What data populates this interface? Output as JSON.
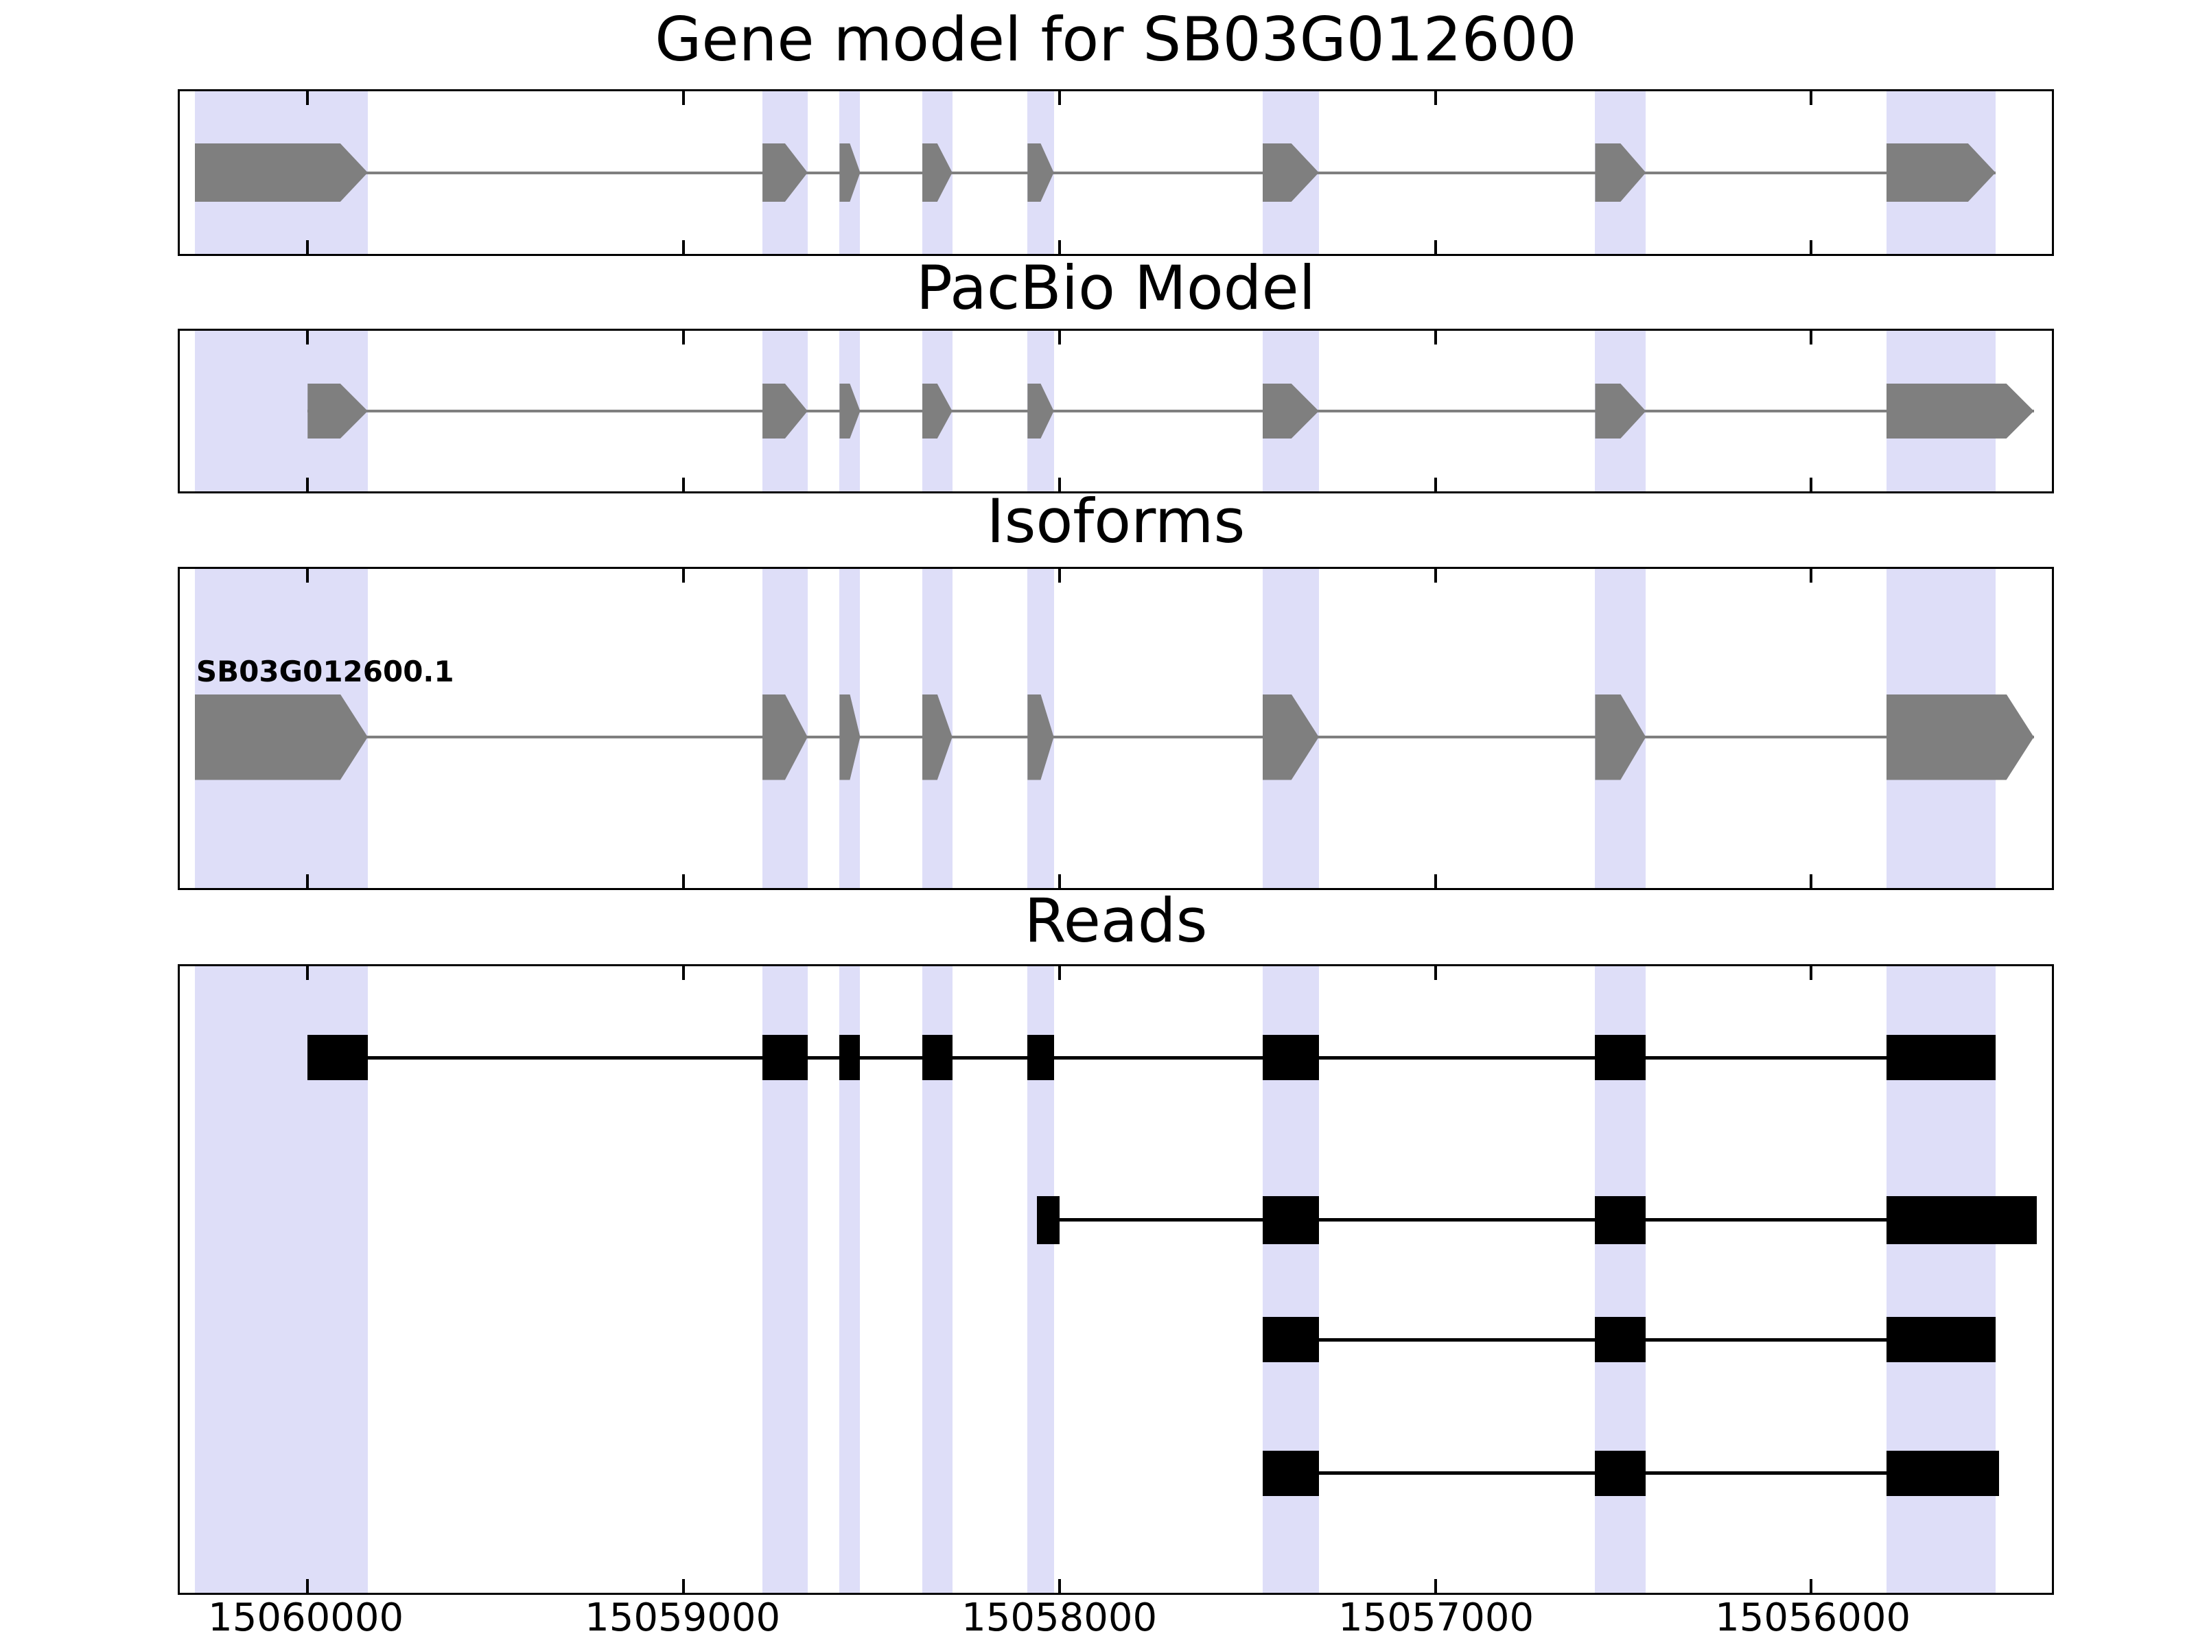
{
  "chart_data": {
    "type": "genome-track-plot",
    "x_axis": {
      "range_left": 15060340,
      "range_right": 15055360,
      "inverted": true,
      "tick_values": [
        15060000,
        15059000,
        15058000,
        15057000,
        15056000
      ],
      "tick_labels": [
        "15060000",
        "15059000",
        "15058000",
        "15057000",
        "15056000"
      ]
    },
    "highlight_regions": [
      [
        15060300,
        15059840
      ],
      [
        15058790,
        15058670
      ],
      [
        15058585,
        15058530
      ],
      [
        15058365,
        15058285
      ],
      [
        15058085,
        15058015
      ],
      [
        15057460,
        15057310
      ],
      [
        15056575,
        15056440
      ],
      [
        15055800,
        15055510
      ]
    ],
    "panels": [
      {
        "title": "Gene model for SB03G012600",
        "style": "gene-arrows",
        "tracks": [
          {
            "label": "",
            "y": 0.5,
            "exon_height": 85,
            "exons": [
              [
                15060300,
                15059840
              ],
              [
                15058790,
                15058670
              ],
              [
                15058585,
                15058530
              ],
              [
                15058365,
                15058285
              ],
              [
                15058085,
                15058015
              ],
              [
                15057460,
                15057310
              ],
              [
                15056575,
                15056440
              ],
              [
                15055800,
                15055510
              ]
            ]
          }
        ]
      },
      {
        "title": "PacBio Model",
        "style": "gene-arrows",
        "tracks": [
          {
            "label": "",
            "y": 0.5,
            "exon_height": 80,
            "exons": [
              [
                15060000,
                15059840
              ],
              [
                15058790,
                15058670
              ],
              [
                15058585,
                15058530
              ],
              [
                15058365,
                15058285
              ],
              [
                15058085,
                15058015
              ],
              [
                15057460,
                15057310
              ],
              [
                15056575,
                15056440
              ],
              [
                15055800,
                15055408
              ]
            ]
          }
        ]
      },
      {
        "title": "Isoforms",
        "style": "gene-arrows",
        "tracks": [
          {
            "label": "SB03G012600.1",
            "y": 0.527,
            "exon_height": 125,
            "exons": [
              [
                15060300,
                15059840
              ],
              [
                15058790,
                15058670
              ],
              [
                15058585,
                15058530
              ],
              [
                15058365,
                15058285
              ],
              [
                15058085,
                15058015
              ],
              [
                15057460,
                15057310
              ],
              [
                15056575,
                15056440
              ],
              [
                15055800,
                15055408
              ]
            ]
          }
        ]
      },
      {
        "title": "Reads",
        "style": "read-blocks",
        "tracks": [
          {
            "label": "",
            "y": 0.146,
            "exon_height": 66,
            "exons": [
              [
                15060000,
                15059840
              ],
              [
                15058790,
                15058670
              ],
              [
                15058585,
                15058530
              ],
              [
                15058365,
                15058285
              ],
              [
                15058085,
                15058015
              ],
              [
                15057460,
                15057310
              ],
              [
                15056575,
                15056440
              ],
              [
                15055800,
                15055510
              ]
            ]
          },
          {
            "label": "",
            "y": 0.405,
            "exon_height": 70,
            "exons": [
              [
                15058060,
                15058000
              ],
              [
                15057460,
                15057310
              ],
              [
                15056575,
                15056440
              ],
              [
                15055800,
                15055400
              ]
            ]
          },
          {
            "label": "",
            "y": 0.596,
            "exon_height": 66,
            "exons": [
              [
                15057460,
                15057310
              ],
              [
                15056575,
                15056440
              ],
              [
                15055800,
                15055510
              ]
            ]
          },
          {
            "label": "",
            "y": 0.809,
            "exon_height": 66,
            "exons": [
              [
                15057460,
                15057310
              ],
              [
                15056575,
                15056440
              ],
              [
                15055800,
                15055500
              ]
            ]
          }
        ]
      }
    ],
    "colors": {
      "exon": "#7f7f7f",
      "intron_line": "#7f7f7f",
      "read": "#000000",
      "read_line": "#000000",
      "highlight": "#dedef8",
      "axis": "#000000",
      "background": "#ffffff"
    }
  }
}
